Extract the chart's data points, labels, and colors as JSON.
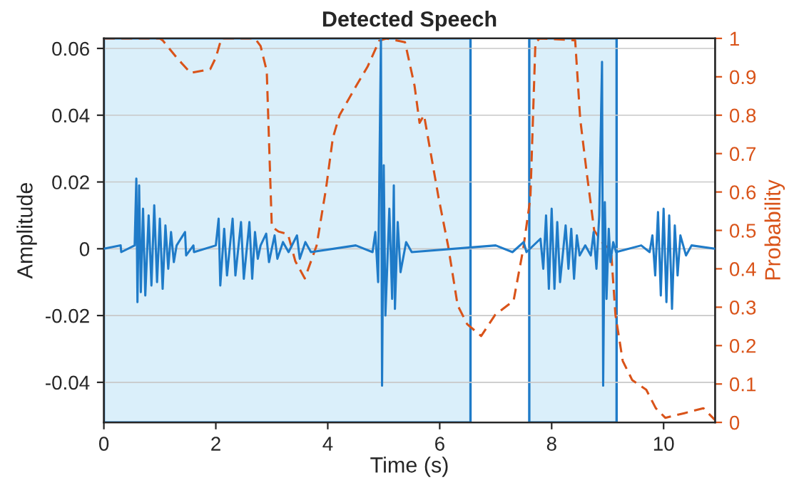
{
  "chart_data": {
    "type": "line",
    "title": "Detected Speech",
    "xlabel": "Time (s)",
    "ylabel": "Amplitude",
    "y2label": "Probability",
    "xlim": [
      0,
      10.92
    ],
    "xticks": [
      0,
      2,
      4,
      6,
      8,
      10
    ],
    "ylim": [
      -0.052,
      0.063
    ],
    "yticks": [
      -0.04,
      -0.02,
      0,
      0.02,
      0.04,
      0.06
    ],
    "y2lim": [
      0,
      1
    ],
    "y2ticks": [
      0,
      0.1,
      0.2,
      0.3,
      0.4,
      0.5,
      0.6,
      0.7,
      0.8,
      0.9,
      1
    ],
    "grid": true,
    "legend": false,
    "bands": [
      {
        "axis": "x",
        "from": 0,
        "to": 6.55,
        "label": null,
        "color": "#daeffa"
      },
      {
        "axis": "x",
        "from": 7.6,
        "to": 9.16,
        "label": null,
        "color": "#daeffa"
      }
    ],
    "series": [
      {
        "color": "#1f7bc8",
        "line_style": "solid",
        "x": [
          0,
          0.3,
          0.31,
          0.55,
          0.58,
          0.6,
          0.63,
          0.66,
          0.7,
          0.74,
          0.8,
          0.85,
          0.9,
          0.95,
          1.0,
          1.05,
          1.1,
          1.15,
          1.2,
          1.25,
          1.3,
          1.45,
          1.47,
          1.6,
          1.61,
          2.0,
          2.05,
          2.08,
          2.15,
          2.2,
          2.3,
          2.35,
          2.45,
          2.5,
          2.6,
          2.65,
          2.7,
          2.75,
          2.8,
          2.9,
          2.95,
          3.05,
          3.1,
          3.2,
          3.3,
          3.45,
          3.5,
          3.6,
          3.7,
          4.5,
          4.8,
          4.85,
          4.9,
          4.95,
          4.97,
          5.0,
          5.03,
          5.1,
          5.15,
          5.18,
          5.2,
          5.25,
          5.3,
          5.4,
          5.5,
          7.0,
          7.3,
          7.5,
          7.55,
          7.8,
          7.85,
          7.9,
          7.95,
          8.0,
          8.05,
          8.1,
          8.15,
          8.25,
          8.3,
          8.35,
          8.4,
          8.45,
          8.5,
          8.6,
          8.7,
          8.75,
          8.8,
          8.85,
          8.9,
          8.92,
          8.95,
          8.98,
          9.02,
          9.05,
          9.1,
          9.15,
          9.6,
          9.75,
          9.8,
          9.85,
          9.9,
          9.95,
          10.0,
          10.05,
          10.1,
          10.15,
          10.2,
          10.25,
          10.3,
          10.4,
          10.5,
          10.92
        ],
        "values": [
          0,
          0.001,
          -0.001,
          0.001,
          0.021,
          -0.016,
          0.019,
          -0.013,
          0.012,
          -0.014,
          0.01,
          -0.011,
          0.013,
          -0.01,
          0.009,
          -0.012,
          0.007,
          -0.006,
          0.005,
          -0.004,
          0.001,
          0.005,
          -0.002,
          0.001,
          -0.001,
          0.001,
          0.009,
          -0.011,
          0.006,
          -0.008,
          0.009,
          -0.008,
          0.008,
          -0.009,
          0.008,
          -0.009,
          0.005,
          -0.003,
          0.001,
          0.0045,
          -0.004,
          0.004,
          -0.003,
          0.002,
          -0.001,
          0.004,
          -0.003,
          0.002,
          -0.001,
          0.001,
          -0.001,
          0.005,
          -0.01,
          0.063,
          -0.041,
          0.025,
          -0.02,
          0.012,
          -0.015,
          0.019,
          -0.018,
          0.008,
          -0.007,
          0.002,
          -0.001,
          0.001,
          -0.001,
          0.002,
          -0.001,
          0.003,
          -0.006,
          0.01,
          -0.012,
          0.012,
          -0.012,
          0.008,
          -0.01,
          0.007,
          -0.006,
          0.006,
          -0.009,
          0.004,
          -0.002,
          0.001,
          -0.002,
          0.005,
          -0.006,
          0.01,
          0.056,
          -0.041,
          0.014,
          -0.015,
          0.006,
          -0.004,
          0.002,
          -0.001,
          0.001,
          -0.001,
          0.004,
          -0.008,
          0.011,
          -0.014,
          0.012,
          -0.016,
          0.01,
          -0.018,
          0.007,
          -0.008,
          0.004,
          -0.002,
          0.001,
          0
        ]
      },
      {
        "color": "#d95319",
        "line_style": "dashed",
        "axis": "y2",
        "x": [
          0,
          1.0,
          1.05,
          1.3,
          1.55,
          1.9,
          2.0,
          2.1,
          2.7,
          2.8,
          2.91,
          3.0,
          3.12,
          3.29,
          3.42,
          3.59,
          3.8,
          3.97,
          4.09,
          4.21,
          4.51,
          4.71,
          4.92,
          5.05,
          5.38,
          5.55,
          5.64,
          5.72,
          5.98,
          6.15,
          6.32,
          6.49,
          6.74,
          6.99,
          7.32,
          7.49,
          7.62,
          7.71,
          7.79,
          8.42,
          8.51,
          8.63,
          8.76,
          8.93,
          9.06,
          9.14,
          9.27,
          9.44,
          9.69,
          9.86,
          10.03,
          10.37,
          10.71,
          10.92
        ],
        "values": [
          1,
          1,
          0.995,
          0.95,
          0.91,
          0.92,
          0.95,
          1,
          1,
          0.98,
          0.915,
          0.51,
          0.497,
          0.49,
          0.42,
          0.375,
          0.46,
          0.61,
          0.74,
          0.8,
          0.877,
          0.926,
          0.994,
          1,
          0.99,
          0.877,
          0.78,
          0.8,
          0.585,
          0.46,
          0.305,
          0.256,
          0.225,
          0.28,
          0.317,
          0.45,
          0.585,
          0.99,
          1,
          0.995,
          0.79,
          0.646,
          0.5,
          0.463,
          0.45,
          0.28,
          0.16,
          0.11,
          0.085,
          0.037,
          0.012,
          0.024,
          0.037,
          0.006
        ]
      }
    ]
  }
}
